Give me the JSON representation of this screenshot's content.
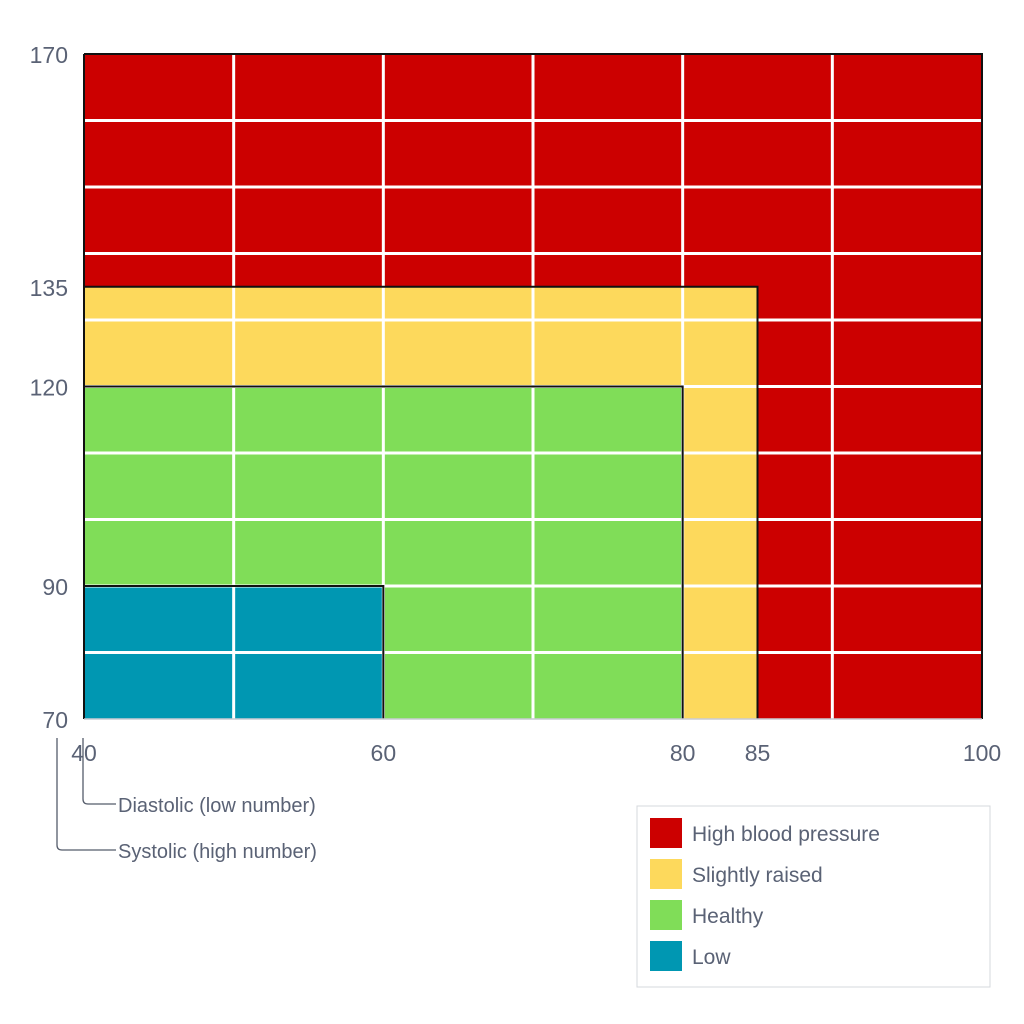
{
  "chart_data": {
    "type": "heatmap",
    "title": "",
    "x_axis": {
      "range": [
        40,
        100
      ],
      "tick_labels": [
        "40",
        "60",
        "80",
        "85",
        "100"
      ],
      "ticks": [
        40,
        60,
        80,
        85,
        100
      ],
      "grid_step": 10
    },
    "y_axis": {
      "range": [
        70,
        170
      ],
      "tick_labels": [
        "70",
        "90",
        "120",
        "135",
        "170"
      ],
      "ticks": [
        70,
        90,
        120,
        135,
        170
      ],
      "grid_step": 10
    },
    "grid": true,
    "axis_annotations": {
      "x": "Diastolic (low number)",
      "y": "Systolic (high number)"
    },
    "regions": [
      {
        "name": "High blood pressure",
        "x_max": 100,
        "y_max": 170,
        "color": "#cc0000"
      },
      {
        "name": "Slightly raised",
        "x_max": 85,
        "y_max": 135,
        "color": "#fdd95c"
      },
      {
        "name": "Healthy",
        "x_max": 80,
        "y_max": 120,
        "color": "#80dd58"
      },
      {
        "name": "Low",
        "x_max": 60,
        "y_max": 90,
        "color": "#0097b2"
      }
    ],
    "legend": {
      "position": "bottom-right",
      "items": [
        {
          "label": "High blood pressure",
          "color": "#cc0000"
        },
        {
          "label": "Slightly raised",
          "color": "#fdd95c"
        },
        {
          "label": "Healthy",
          "color": "#80dd58"
        },
        {
          "label": "Low",
          "color": "#0097b2"
        }
      ]
    }
  }
}
